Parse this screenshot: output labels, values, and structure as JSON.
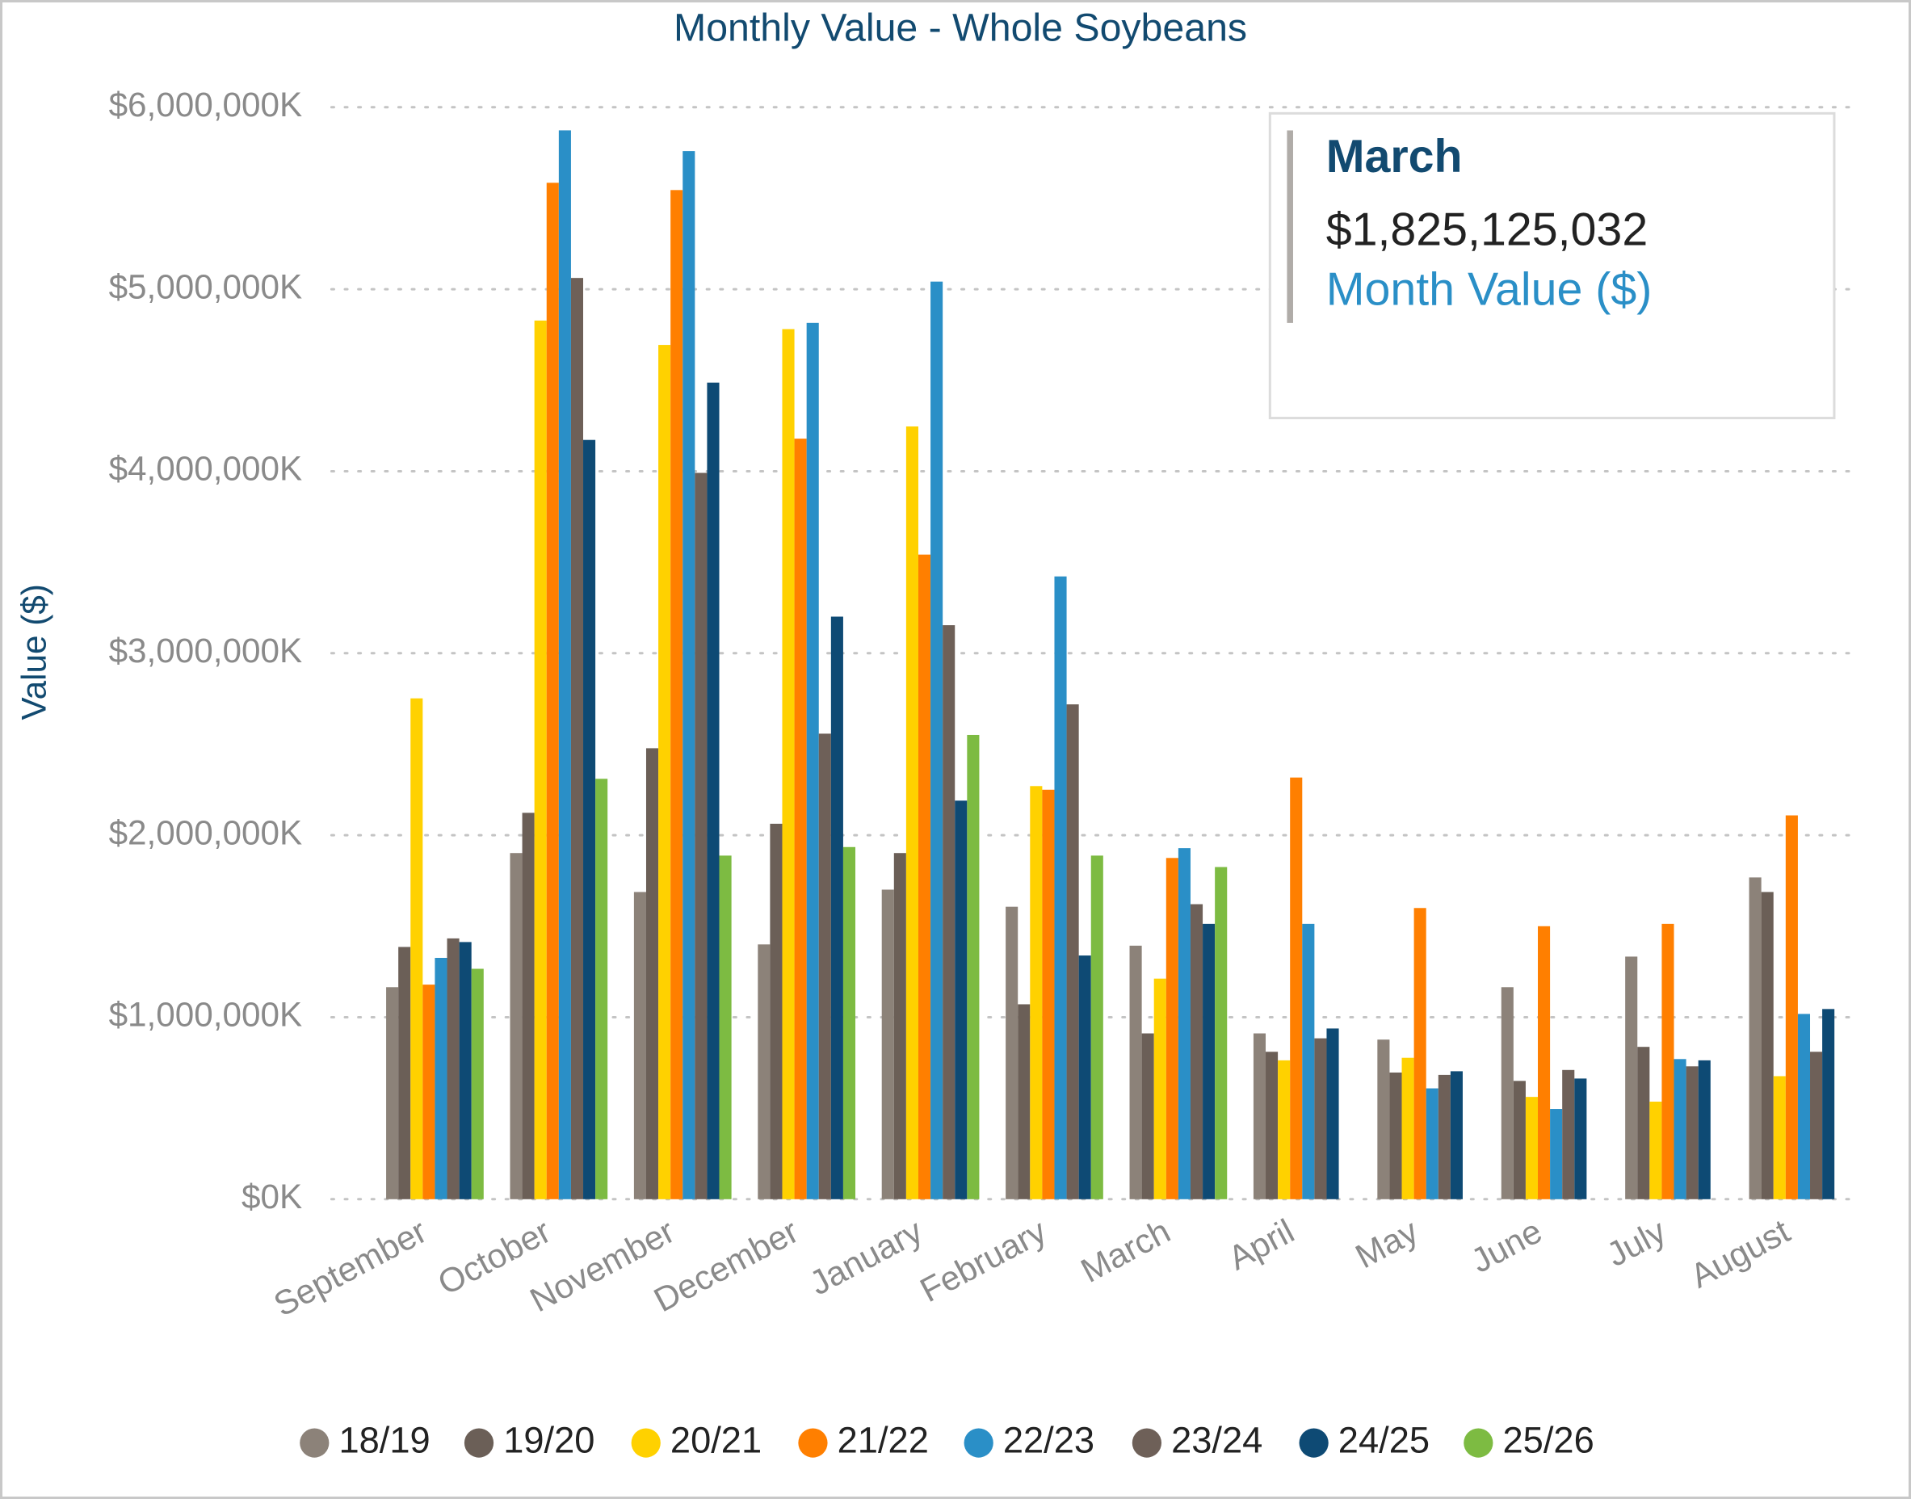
{
  "chart_data": {
    "type": "bar",
    "title": "Monthly Value - Whole Soybeans",
    "y_label": "Value ($)",
    "categories": [
      "September",
      "October",
      "November",
      "December",
      "January",
      "February",
      "March",
      "April",
      "May",
      "June",
      "July",
      "August"
    ],
    "series": [
      {
        "name": "18/19",
        "color": "#8c8279",
        "values": [
          1165000,
          1902000,
          1688000,
          1400000,
          1701000,
          1607000,
          1393000,
          911000,
          877000,
          1165000,
          1333000,
          1768000
        ]
      },
      {
        "name": "19/20",
        "color": "#6b5f57",
        "values": [
          1386000,
          2123000,
          2478000,
          2063000,
          1902000,
          1071000,
          911000,
          810000,
          696000,
          650000,
          837000,
          1688000
        ]
      },
      {
        "name": "20/21",
        "color": "#ffd100",
        "values": [
          2752000,
          4828000,
          4694000,
          4781000,
          4246000,
          2270000,
          1212000,
          763000,
          777000,
          562000,
          536000,
          676000
        ]
      },
      {
        "name": "21/22",
        "color": "#ff7f00",
        "values": [
          1179000,
          5585000,
          5545000,
          4179000,
          3542000,
          2250000,
          1875000,
          2317000,
          1600000,
          1500000,
          1513000,
          2109000
        ]
      },
      {
        "name": "22/23",
        "color": "#2a8fc7",
        "values": [
          1326000,
          5873000,
          5759000,
          4815000,
          5042000,
          3422000,
          1929000,
          1513000,
          609000,
          496000,
          770000,
          1018000
        ]
      },
      {
        "name": "23/24",
        "color": "#6e6058",
        "values": [
          1433000,
          5062000,
          3991000,
          2558000,
          3154000,
          2719000,
          1621000,
          884000,
          683000,
          710000,
          730000,
          810000
        ]
      },
      {
        "name": "24/25",
        "color": "#0e4a74",
        "values": [
          1413000,
          4172000,
          4487000,
          3201000,
          2190000,
          1339000,
          1513000,
          938000,
          703000,
          663000,
          763000,
          1045000
        ]
      },
      {
        "name": "25/26",
        "color": "#7dbb42",
        "values": [
          1266000,
          2310000,
          1888000,
          1935000,
          2551000,
          1888000,
          1825125.032,
          null,
          null,
          null,
          null,
          null
        ]
      }
    ],
    "ylim": [
      0,
      6000000
    ],
    "yticks": [
      {
        "value": 0,
        "label": "$0K"
      },
      {
        "value": 1000000,
        "label": "$1,000,000K"
      },
      {
        "value": 2000000,
        "label": "$2,000,000K"
      },
      {
        "value": 3000000,
        "label": "$3,000,000K"
      },
      {
        "value": 4000000,
        "label": "$4,000,000K"
      },
      {
        "value": 5000000,
        "label": "$5,000,000K"
      },
      {
        "value": 6000000,
        "label": "$6,000,000K"
      }
    ],
    "grid": true,
    "tooltip": {
      "title": "March",
      "value": "$1,825,125,032",
      "label": "Month Value ($)"
    }
  }
}
